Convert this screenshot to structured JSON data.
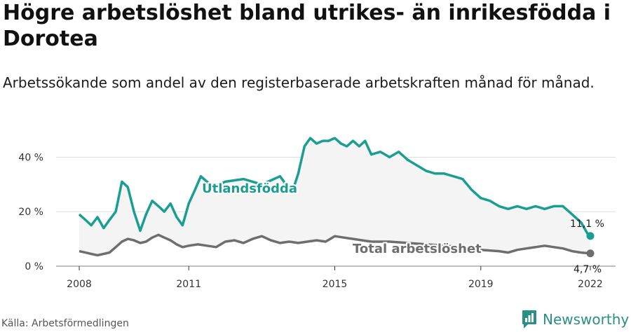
{
  "header": {
    "title": "Högre arbetslöshet bland utrikes- än inrikesfödda i Dorotea",
    "subtitle": "Arbetssökande som andel av den registerbaserade arbetskraften månad för månad."
  },
  "footer": {
    "source": "Källa: Arbetsförmedlingen",
    "brand": "Newsworthy"
  },
  "colors": {
    "utlandsfodda": "#1a9e91",
    "total": "#6e6e6e",
    "band": "#f4f4f4",
    "grid": "#dddddd",
    "brand": "#2a8f86"
  },
  "chart_data": {
    "type": "line",
    "title": "Högre arbetslöshet bland utrikes- än inrikesfödda i Dorotea",
    "subtitle": "Arbetssökande som andel av den registerbaserade arbetskraften månad för månad.",
    "x_unit": "year",
    "xlim": [
      2008,
      2022.2
    ],
    "ylim": [
      0,
      45
    ],
    "y_ticks": [
      0,
      20,
      40
    ],
    "y_tick_labels": [
      "0 %",
      "20 %",
      "40 %"
    ],
    "x_ticks": [
      2008,
      2011,
      2015,
      2019,
      2022
    ],
    "x_tick_labels": [
      "2008",
      "2011",
      "2015",
      "2019",
      "2022"
    ],
    "grid": true,
    "series": [
      {
        "name": "Utlandsfödda",
        "end_label": "11,1 %",
        "x": [
          2008.0,
          2008.17,
          2008.33,
          2008.5,
          2008.67,
          2008.83,
          2009.0,
          2009.17,
          2009.33,
          2009.5,
          2009.67,
          2009.83,
          2010.0,
          2010.17,
          2010.33,
          2010.5,
          2010.67,
          2010.83,
          2011.0,
          2011.17,
          2011.33,
          2011.5,
          2011.67,
          2011.83,
          2012.0,
          2012.5,
          2013.0,
          2013.5,
          2013.83,
          2014.0,
          2014.17,
          2014.33,
          2014.5,
          2014.67,
          2014.83,
          2015.0,
          2015.17,
          2015.33,
          2015.5,
          2015.67,
          2015.83,
          2016.0,
          2016.25,
          2016.5,
          2016.75,
          2017.0,
          2017.25,
          2017.5,
          2017.75,
          2018.0,
          2018.25,
          2018.5,
          2018.75,
          2019.0,
          2019.25,
          2019.5,
          2019.75,
          2020.0,
          2020.25,
          2020.5,
          2020.75,
          2021.0,
          2021.25,
          2021.5,
          2021.75,
          2021.92,
          2022.0
        ],
        "values": [
          19,
          17,
          15,
          18,
          14,
          17,
          20,
          31,
          29,
          20,
          13,
          19,
          24,
          22,
          20,
          23,
          18,
          15,
          23,
          28,
          33,
          31,
          29,
          30,
          31,
          32,
          30,
          33,
          27,
          34,
          44,
          47,
          45,
          46,
          46,
          47,
          45,
          44,
          46,
          44,
          46,
          41,
          42,
          40,
          42,
          39,
          37,
          35,
          34,
          34,
          33,
          32,
          28,
          25,
          24,
          22,
          21,
          22,
          21,
          22,
          21,
          22,
          22,
          19,
          16,
          12,
          11.1
        ]
      },
      {
        "name": "Total arbetslöshet",
        "end_label": "4,7 %",
        "x": [
          2008.0,
          2008.17,
          2008.33,
          2008.5,
          2008.67,
          2008.83,
          2009.0,
          2009.17,
          2009.33,
          2009.5,
          2009.67,
          2009.83,
          2010.0,
          2010.17,
          2010.33,
          2010.5,
          2010.67,
          2010.83,
          2011.0,
          2011.25,
          2011.5,
          2011.75,
          2012.0,
          2012.25,
          2012.5,
          2012.75,
          2013.0,
          2013.25,
          2013.5,
          2013.75,
          2014.0,
          2014.25,
          2014.5,
          2014.75,
          2015.0,
          2015.25,
          2015.5,
          2015.75,
          2016.0,
          2016.5,
          2017.0,
          2017.5,
          2018.0,
          2018.5,
          2019.0,
          2019.5,
          2019.75,
          2020.0,
          2020.25,
          2020.5,
          2020.75,
          2021.0,
          2021.25,
          2021.5,
          2021.75,
          2022.0
        ],
        "values": [
          5.5,
          5.0,
          4.5,
          4.0,
          4.5,
          5.0,
          7.0,
          9.0,
          10.0,
          9.5,
          8.5,
          9.0,
          10.5,
          11.5,
          10.5,
          9.5,
          8.0,
          7.0,
          7.5,
          8.0,
          7.5,
          7.0,
          9.0,
          9.5,
          8.5,
          10.0,
          11.0,
          9.5,
          8.5,
          9.0,
          8.5,
          9.0,
          9.5,
          9.0,
          11.0,
          10.5,
          10.0,
          9.5,
          9.0,
          9.0,
          8.5,
          8.0,
          7.5,
          7.0,
          6.0,
          5.5,
          5.0,
          6.0,
          6.5,
          7.0,
          7.5,
          7.0,
          6.5,
          5.5,
          5.0,
          4.7
        ]
      }
    ]
  }
}
